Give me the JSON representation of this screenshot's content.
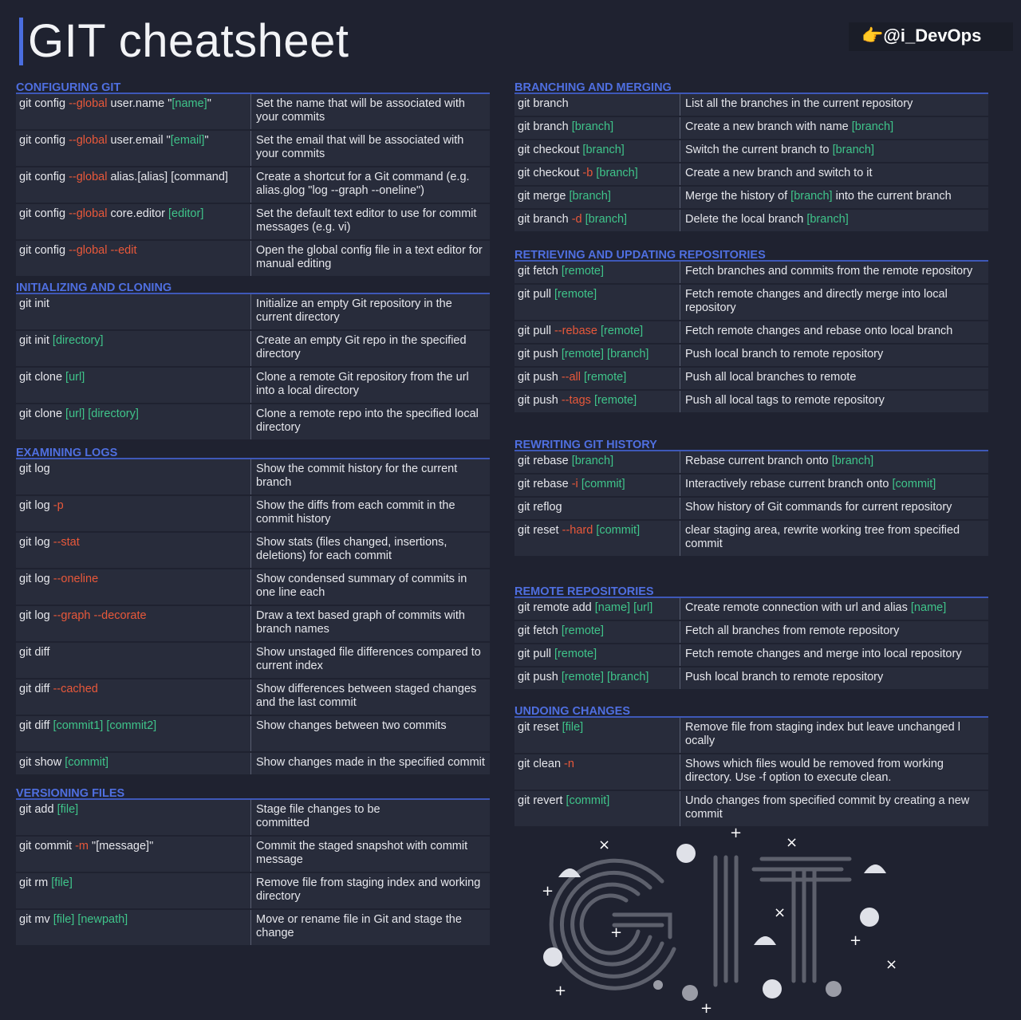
{
  "header": {
    "title": "GIT cheatsheet",
    "handle": "👉@i_DevOps"
  },
  "colors": {
    "background": "#1f2230",
    "row": "#282c3b",
    "section_title": "#4f6fe0",
    "flag": "#e8583a",
    "placeholder": "#3fc48a"
  },
  "left": [
    {
      "title": "CONFIGURING GIT",
      "rows": [
        {
          "cmd": [
            [
              "git config ",
              ""
            ],
            [
              "--global",
              "o"
            ],
            [
              " user.name \"",
              ""
            ],
            [
              "[name]",
              "g"
            ],
            [
              "\"",
              ""
            ]
          ],
          "desc": [
            [
              "Set the name that will be associated with your commits",
              ""
            ]
          ]
        },
        {
          "cmd": [
            [
              "git config ",
              ""
            ],
            [
              "--global",
              "o"
            ],
            [
              " user.email \"",
              ""
            ],
            [
              "[email]",
              "g"
            ],
            [
              "\"",
              ""
            ]
          ],
          "desc": [
            [
              "Set the email that will be associated with your commits",
              ""
            ]
          ]
        },
        {
          "cmd": [
            [
              "git config ",
              ""
            ],
            [
              "--global",
              "o"
            ],
            [
              " alias.[alias] [command]",
              ""
            ]
          ],
          "desc": [
            [
              "Create a shortcut for a Git command (e.g. alias.glog \"log --graph --oneline\")",
              ""
            ]
          ]
        },
        {
          "cmd": [
            [
              "git config ",
              ""
            ],
            [
              "--global",
              "o"
            ],
            [
              " core.editor ",
              ""
            ],
            [
              "[editor]",
              "g"
            ]
          ],
          "desc": [
            [
              "Set the default text editor to use for commit messages (e.g. vi)",
              ""
            ]
          ]
        },
        {
          "cmd": [
            [
              "git config ",
              ""
            ],
            [
              "--global --edit",
              "o"
            ]
          ],
          "desc": [
            [
              "Open the global config file in a text editor for manual editing",
              ""
            ]
          ]
        }
      ]
    },
    {
      "title": "INITIALIZING AND CLONING",
      "rows": [
        {
          "cmd": [
            [
              "git init",
              ""
            ]
          ],
          "desc": [
            [
              "Initialize an empty Git repository in the current directory",
              ""
            ]
          ]
        },
        {
          "cmd": [
            [
              "git init ",
              ""
            ],
            [
              "[directory]",
              "g"
            ]
          ],
          "desc": [
            [
              "Create an empty Git repo in the specified directory",
              ""
            ]
          ]
        },
        {
          "cmd": [
            [
              "git clone ",
              ""
            ],
            [
              "[url]",
              "g"
            ]
          ],
          "desc": [
            [
              "Clone a remote Git repository from the url into a local directory",
              ""
            ]
          ]
        },
        {
          "cmd": [
            [
              "git clone ",
              ""
            ],
            [
              "[url] [directory]",
              "g"
            ]
          ],
          "desc": [
            [
              "Clone a remote repo into the specified local directory",
              ""
            ]
          ]
        }
      ]
    },
    {
      "title": "EXAMINING LOGS",
      "rows": [
        {
          "cmd": [
            [
              "git log",
              ""
            ]
          ],
          "desc": [
            [
              "Show the commit history for the current branch",
              ""
            ]
          ]
        },
        {
          "cmd": [
            [
              "git log ",
              ""
            ],
            [
              "-p",
              "o"
            ]
          ],
          "desc": [
            [
              "Show the diffs from each commit in the commit history",
              ""
            ]
          ]
        },
        {
          "cmd": [
            [
              "git log ",
              ""
            ],
            [
              "--stat",
              "o"
            ]
          ],
          "desc": [
            [
              "Show stats (files changed, insertions, deletions) for each commit",
              ""
            ]
          ]
        },
        {
          "cmd": [
            [
              "git log ",
              ""
            ],
            [
              "--oneline",
              "o"
            ]
          ],
          "desc": [
            [
              "Show condensed summary of commits in one line each",
              ""
            ]
          ]
        },
        {
          "cmd": [
            [
              "git log ",
              ""
            ],
            [
              "--graph --decorate",
              "o"
            ]
          ],
          "desc": [
            [
              "Draw a text based graph of commits with branch names",
              ""
            ]
          ]
        },
        {
          "cmd": [
            [
              "git diff",
              ""
            ]
          ],
          "desc": [
            [
              "Show unstaged file differences compared to current index",
              ""
            ]
          ]
        },
        {
          "cmd": [
            [
              "git diff ",
              ""
            ],
            [
              "--cached",
              "o"
            ]
          ],
          "desc": [
            [
              "Show differences between staged changes and the last commit",
              ""
            ]
          ]
        },
        {
          "cmd": [
            [
              "git diff ",
              ""
            ],
            [
              "[commit1] [commit2]",
              "g"
            ]
          ],
          "desc": [
            [
              "Show changes between two commits",
              ""
            ]
          ],
          "tall": true
        },
        {
          "cmd": [
            [
              "git show ",
              ""
            ],
            [
              "[commit]",
              "g"
            ]
          ],
          "desc": [
            [
              "Show changes made in the specified commit",
              ""
            ]
          ]
        }
      ]
    },
    {
      "title": "VERSIONING FILES",
      "rows": [
        {
          "cmd": [
            [
              "git add ",
              ""
            ],
            [
              "[file]",
              "g"
            ]
          ],
          "desc": [
            [
              "Stage file changes to be committed",
              ""
            ]
          ],
          "narrow": true
        },
        {
          "cmd": [
            [
              "git commit ",
              ""
            ],
            [
              "-m",
              "o"
            ],
            [
              " \"[message]\"",
              ""
            ]
          ],
          "desc": [
            [
              "Commit the staged snapshot with commit message",
              ""
            ]
          ]
        },
        {
          "cmd": [
            [
              "git rm ",
              ""
            ],
            [
              "[file]",
              "g"
            ]
          ],
          "desc": [
            [
              "Remove file from staging index and working directory",
              ""
            ]
          ]
        },
        {
          "cmd": [
            [
              "git mv ",
              ""
            ],
            [
              "[file] [newpath]",
              "g"
            ]
          ],
          "desc": [
            [
              "Move or rename file in Git and stage the change",
              ""
            ]
          ]
        }
      ]
    }
  ],
  "right": [
    {
      "title": "BRANCHING AND MERGING",
      "rows": [
        {
          "cmd": [
            [
              "git branch",
              ""
            ]
          ],
          "desc": [
            [
              "List all the branches in the current repository",
              ""
            ]
          ]
        },
        {
          "cmd": [
            [
              "git branch ",
              ""
            ],
            [
              "[branch]",
              "g"
            ]
          ],
          "desc": [
            [
              "Create a new branch with name ",
              ""
            ],
            [
              "[branch]",
              "g"
            ]
          ]
        },
        {
          "cmd": [
            [
              "git checkout ",
              ""
            ],
            [
              "[branch]",
              "g"
            ]
          ],
          "desc": [
            [
              "Switch the current branch to ",
              ""
            ],
            [
              "[branch]",
              "g"
            ]
          ]
        },
        {
          "cmd": [
            [
              "git checkout ",
              ""
            ],
            [
              "-b",
              "o"
            ],
            [
              " ",
              ""
            ],
            [
              "[branch]",
              "g"
            ]
          ],
          "desc": [
            [
              "Create a new branch and switch to it",
              ""
            ]
          ]
        },
        {
          "cmd": [
            [
              "git merge ",
              ""
            ],
            [
              "[branch]",
              "g"
            ]
          ],
          "desc": [
            [
              "Merge the history of ",
              ""
            ],
            [
              "[branch]",
              "g"
            ],
            [
              " into the current branch",
              ""
            ]
          ]
        },
        {
          "cmd": [
            [
              "git branch ",
              ""
            ],
            [
              "-d",
              "o"
            ],
            [
              " ",
              ""
            ],
            [
              "[branch]",
              "g"
            ]
          ],
          "desc": [
            [
              "Delete the local branch ",
              ""
            ],
            [
              "[branch]",
              "g"
            ]
          ]
        }
      ]
    },
    {
      "title": "RETRIEVING AND UPDATING REPOSITORIES",
      "rows": [
        {
          "cmd": [
            [
              "git fetch ",
              ""
            ],
            [
              "[remote]",
              "g"
            ]
          ],
          "desc": [
            [
              "Fetch branches and commits from the remote repository",
              ""
            ]
          ]
        },
        {
          "cmd": [
            [
              "git pull ",
              ""
            ],
            [
              "[remote]",
              "g"
            ]
          ],
          "desc": [
            [
              "Fetch remote changes and directly merge into local repository",
              ""
            ]
          ]
        },
        {
          "cmd": [
            [
              "git pull ",
              ""
            ],
            [
              "--rebase",
              "o"
            ],
            [
              " ",
              ""
            ],
            [
              "[remote]",
              "g"
            ]
          ],
          "desc": [
            [
              "Fetch remote changes and rebase onto local branch",
              ""
            ]
          ]
        },
        {
          "cmd": [
            [
              "git push ",
              ""
            ],
            [
              "[remote] [branch]",
              "g"
            ]
          ],
          "desc": [
            [
              "Push local branch to remote repository",
              ""
            ]
          ]
        },
        {
          "cmd": [
            [
              "git push ",
              ""
            ],
            [
              "--all",
              "o"
            ],
            [
              " ",
              ""
            ],
            [
              "[remote]",
              "g"
            ]
          ],
          "desc": [
            [
              "Push all local branches to remote",
              ""
            ]
          ]
        },
        {
          "cmd": [
            [
              "git push ",
              ""
            ],
            [
              "--tags",
              "o"
            ],
            [
              " ",
              ""
            ],
            [
              "[remote]",
              "g"
            ]
          ],
          "desc": [
            [
              "Push all local tags to remote repository",
              ""
            ]
          ]
        }
      ]
    },
    {
      "title": "REWRITING GIT HISTORY",
      "rows": [
        {
          "cmd": [
            [
              "git rebase ",
              ""
            ],
            [
              "[branch]",
              "g"
            ]
          ],
          "desc": [
            [
              "Rebase current branch onto ",
              ""
            ],
            [
              "[branch]",
              "g"
            ]
          ]
        },
        {
          "cmd": [
            [
              "git rebase ",
              ""
            ],
            [
              "-i",
              "o"
            ],
            [
              " ",
              ""
            ],
            [
              "[commit]",
              "g"
            ]
          ],
          "desc": [
            [
              "Interactively rebase current branch onto ",
              ""
            ],
            [
              "[commit]",
              "g"
            ]
          ]
        },
        {
          "cmd": [
            [
              "git reflog",
              ""
            ]
          ],
          "desc": [
            [
              "Show history of Git commands for current repository",
              ""
            ]
          ]
        },
        {
          "cmd": [
            [
              "git reset ",
              ""
            ],
            [
              "--hard",
              "o"
            ],
            [
              " ",
              ""
            ],
            [
              "[commit]",
              "g"
            ]
          ],
          "desc": [
            [
              "clear staging area, rewrite working tree from specified commit",
              ""
            ]
          ]
        }
      ]
    },
    {
      "title": "REMOTE REPOSITORIES",
      "rows": [
        {
          "cmd": [
            [
              "git remote add ",
              ""
            ],
            [
              "[name] [url]",
              "g"
            ]
          ],
          "desc": [
            [
              "Create remote connection with url and alias ",
              ""
            ],
            [
              "[name]",
              "g"
            ]
          ]
        },
        {
          "cmd": [
            [
              "git fetch ",
              ""
            ],
            [
              "[remote]",
              "g"
            ]
          ],
          "desc": [
            [
              "Fetch all branches from remote repository",
              ""
            ]
          ]
        },
        {
          "cmd": [
            [
              "git pull ",
              ""
            ],
            [
              "[remote]",
              "g"
            ]
          ],
          "desc": [
            [
              "Fetch remote changes and merge into local repository",
              ""
            ]
          ]
        },
        {
          "cmd": [
            [
              "git push ",
              ""
            ],
            [
              "[remote] [branch]",
              "g"
            ]
          ],
          "desc": [
            [
              "Push local branch to remote repository",
              ""
            ]
          ]
        }
      ]
    },
    {
      "title": "UNDOING CHANGES",
      "rows": [
        {
          "cmd": [
            [
              "git reset ",
              ""
            ],
            [
              "[file]",
              "g"
            ]
          ],
          "desc": [
            [
              "Remove file from staging index but leave unchanged l ocally",
              ""
            ]
          ]
        },
        {
          "cmd": [
            [
              "git clean ",
              ""
            ],
            [
              "-n",
              "o"
            ]
          ],
          "desc": [
            [
              "Shows which files would be removed from working directory. Use -f option to execute clean.",
              ""
            ]
          ]
        },
        {
          "cmd": [
            [
              "git revert ",
              ""
            ],
            [
              "[commit]",
              "g"
            ]
          ],
          "desc": [
            [
              "Undo changes from specified commit by creating a new commit",
              ""
            ]
          ]
        }
      ]
    }
  ]
}
